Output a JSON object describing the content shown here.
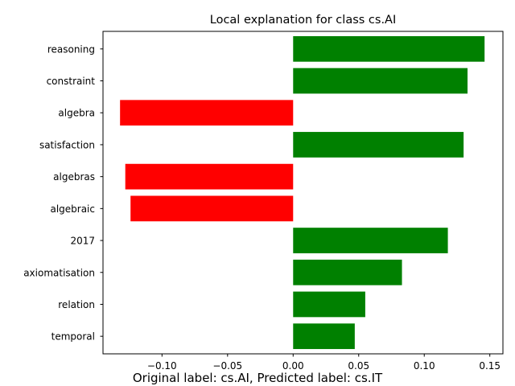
{
  "chart_data": {
    "type": "bar",
    "orientation": "horizontal",
    "title": "Local explanation for class cs.AI",
    "xlabel": "",
    "ylabel": "",
    "categories": [
      "reasoning",
      "constraint",
      "algebra",
      "satisfaction",
      "algebras",
      "algebraic",
      "2017",
      "axiomatisation",
      "relation",
      "temporal"
    ],
    "values": [
      0.146,
      0.133,
      -0.132,
      0.13,
      -0.128,
      -0.124,
      0.118,
      0.083,
      0.055,
      0.047
    ],
    "xlim": [
      -0.145,
      0.16
    ],
    "xticks": [
      -0.1,
      -0.05,
      0.0,
      0.05,
      0.1,
      0.15
    ],
    "xtick_labels": [
      "−0.10",
      "−0.05",
      "0.00",
      "0.05",
      "0.10",
      "0.15"
    ],
    "colors": {
      "positive": "#008000",
      "negative": "#ff0000"
    },
    "grid": false,
    "legend": "none"
  },
  "caption": "Original label: cs.AI, Predicted label: cs.IT"
}
